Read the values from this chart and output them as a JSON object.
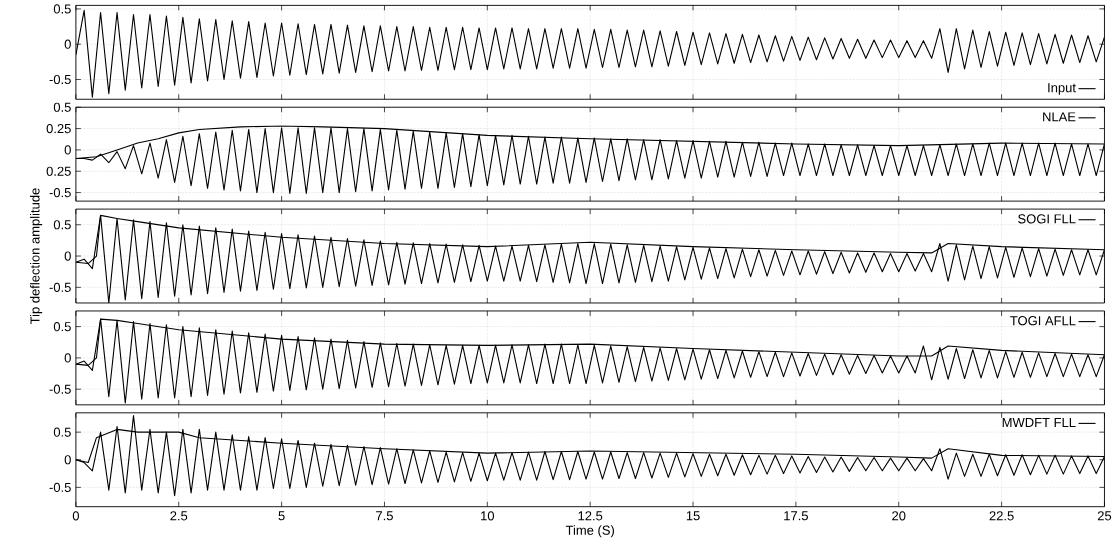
{
  "chart_data": [
    {
      "type": "line",
      "xlim": [
        0,
        25
      ],
      "ylim": [
        -0.78,
        0.55
      ],
      "xticks": [
        0,
        2.5,
        5,
        7.5,
        10,
        12.5,
        15,
        17.5,
        20,
        22.5,
        25
      ],
      "yticks": [
        -0.5,
        0,
        0.5
      ],
      "grid": true,
      "legend": "bottom right",
      "tick_labels": "y",
      "x": [
        0,
        0.2,
        0.4,
        0.6,
        0.8,
        1,
        1.2,
        1.4,
        1.6,
        1.8,
        2,
        2.2,
        2.4,
        2.6,
        2.8,
        3,
        3.2,
        3.4,
        3.6,
        3.8,
        4,
        4.2,
        4.4,
        4.6,
        4.8,
        5,
        5.2,
        5.4,
        5.6,
        5.8,
        6,
        6.2,
        6.4,
        6.6,
        6.8,
        7,
        7.2,
        7.4,
        7.6,
        7.8,
        8,
        8.2,
        8.4,
        8.6,
        8.8,
        9,
        9.2,
        9.4,
        9.6,
        9.8,
        10,
        10.2,
        10.4,
        10.6,
        10.8,
        11,
        11.2,
        11.4,
        11.6,
        11.8,
        12,
        12.2,
        12.4,
        12.6,
        12.8,
        13,
        13.2,
        13.4,
        13.6,
        13.8,
        14,
        14.2,
        14.4,
        14.6,
        14.8,
        15,
        15.2,
        15.4,
        15.6,
        15.8,
        16,
        16.2,
        16.4,
        16.6,
        16.8,
        17,
        17.2,
        17.4,
        17.6,
        17.8,
        18,
        18.2,
        18.4,
        18.6,
        18.8,
        19,
        19.2,
        19.4,
        19.6,
        19.8,
        20,
        20.2,
        20.4,
        20.6,
        20.8,
        21,
        21.2,
        21.4,
        21.6,
        21.8,
        22,
        22.2,
        22.4,
        22.6,
        22.8,
        23,
        23.2,
        23.4,
        23.6,
        23.8,
        24,
        24.2,
        24.4,
        24.6,
        24.8,
        25
      ],
      "series": [
        {
          "name": "Input",
          "color": "#000000",
          "values": [
            -0.15,
            0.48,
            -0.75,
            0.45,
            -0.7,
            0.45,
            -0.65,
            0.42,
            -0.62,
            0.42,
            -0.6,
            0.4,
            -0.58,
            0.38,
            -0.55,
            0.36,
            -0.52,
            0.35,
            -0.5,
            0.33,
            -0.48,
            0.32,
            -0.47,
            0.3,
            -0.45,
            0.3,
            -0.44,
            0.29,
            -0.43,
            0.28,
            -0.42,
            0.28,
            -0.41,
            0.27,
            -0.4,
            0.26,
            -0.39,
            0.26,
            -0.38,
            0.25,
            -0.38,
            0.25,
            -0.37,
            0.24,
            -0.37,
            0.24,
            -0.36,
            0.24,
            -0.36,
            0.23,
            -0.36,
            0.23,
            -0.35,
            0.23,
            -0.35,
            0.22,
            -0.35,
            0.22,
            -0.34,
            0.22,
            -0.34,
            0.22,
            -0.34,
            0.21,
            -0.33,
            0.21,
            -0.33,
            0.2,
            -0.32,
            0.2,
            -0.32,
            0.19,
            -0.31,
            0.18,
            -0.3,
            0.17,
            -0.29,
            0.16,
            -0.28,
            0.15,
            -0.27,
            0.14,
            -0.26,
            0.13,
            -0.25,
            0.12,
            -0.24,
            0.11,
            -0.23,
            0.1,
            -0.22,
            0.09,
            -0.21,
            0.08,
            -0.2,
            0.07,
            -0.2,
            0.06,
            -0.19,
            0.06,
            -0.19,
            0.05,
            -0.19,
            0.05,
            -0.2,
            0.22,
            -0.4,
            0.22,
            -0.35,
            0.2,
            -0.33,
            0.18,
            -0.31,
            0.17,
            -0.3,
            0.16,
            -0.29,
            0.15,
            -0.28,
            0.14,
            -0.27,
            0.13,
            -0.26,
            0.12,
            -0.25,
            0.1
          ]
        }
      ]
    },
    {
      "type": "line",
      "xlim": [
        0,
        25
      ],
      "ylim": [
        -0.6,
        0.5
      ],
      "xticks": [
        0,
        2.5,
        5,
        7.5,
        10,
        12.5,
        15,
        17.5,
        20,
        22.5,
        25
      ],
      "yticks": [
        -0.5,
        {
          "value": -0.25,
          "label": "0.25"
        },
        0,
        0.25,
        0.5
      ],
      "grid": true,
      "legend": "top right",
      "tick_labels": "y",
      "x": [
        0,
        0.2,
        0.4,
        0.6,
        0.8,
        1,
        1.2,
        1.4,
        1.6,
        1.8,
        2,
        2.2,
        2.4,
        2.6,
        2.8,
        3,
        3.2,
        3.4,
        3.6,
        3.8,
        4,
        4.2,
        4.4,
        4.6,
        4.8,
        5,
        5.2,
        5.4,
        5.6,
        5.8,
        6,
        6.2,
        6.4,
        6.6,
        6.8,
        7,
        7.2,
        7.4,
        7.6,
        7.8,
        8,
        8.2,
        8.4,
        8.6,
        8.8,
        9,
        9.2,
        9.4,
        9.6,
        9.8,
        10,
        10.2,
        10.4,
        10.6,
        10.8,
        11,
        11.2,
        11.4,
        11.6,
        11.8,
        12,
        12.2,
        12.4,
        12.6,
        12.8,
        13,
        13.2,
        13.4,
        13.6,
        13.8,
        14,
        14.2,
        14.4,
        14.6,
        14.8,
        15,
        15.2,
        15.4,
        15.6,
        15.8,
        16,
        16.2,
        16.4,
        16.6,
        16.8,
        17,
        17.2,
        17.4,
        17.6,
        17.8,
        18,
        18.2,
        18.4,
        18.6,
        18.8,
        19,
        19.2,
        19.4,
        19.6,
        19.8,
        20,
        20.2,
        20.4,
        20.6,
        20.8,
        21,
        21.2,
        21.4,
        21.6,
        21.8,
        22,
        22.2,
        22.4,
        22.6,
        22.8,
        23,
        23.2,
        23.4,
        23.6,
        23.8,
        24,
        24.2,
        24.4,
        24.6,
        24.8,
        25
      ],
      "series": [
        {
          "name": "NLAE",
          "color": "#000000",
          "values": [
            -0.1,
            -0.1,
            -0.12,
            -0.05,
            -0.15,
            -0.02,
            -0.22,
            0.05,
            -0.28,
            0.08,
            -0.33,
            0.12,
            -0.38,
            0.16,
            -0.42,
            0.19,
            -0.45,
            0.21,
            -0.47,
            0.23,
            -0.48,
            0.24,
            -0.5,
            0.25,
            -0.5,
            0.26,
            -0.51,
            0.26,
            -0.51,
            0.26,
            -0.5,
            0.26,
            -0.5,
            0.25,
            -0.49,
            0.25,
            -0.48,
            0.24,
            -0.47,
            0.23,
            -0.46,
            0.22,
            -0.45,
            0.21,
            -0.45,
            0.2,
            -0.44,
            0.19,
            -0.43,
            0.18,
            -0.42,
            0.17,
            -0.41,
            0.17,
            -0.4,
            0.16,
            -0.4,
            0.15,
            -0.39,
            0.15,
            -0.39,
            0.14,
            -0.38,
            0.14,
            -0.37,
            0.13,
            -0.36,
            0.13,
            -0.35,
            0.12,
            -0.35,
            0.12,
            -0.34,
            0.11,
            -0.33,
            0.11,
            -0.33,
            0.1,
            -0.32,
            0.1,
            -0.32,
            0.09,
            -0.31,
            0.09,
            -0.31,
            0.08,
            -0.3,
            0.08,
            -0.3,
            0.07,
            -0.3,
            0.07,
            -0.3,
            0.06,
            -0.3,
            0.06,
            -0.3,
            0.05,
            -0.3,
            0.05,
            -0.3,
            0.05,
            -0.3,
            0.05,
            -0.3,
            0.06,
            -0.3,
            0.07,
            -0.3,
            0.07,
            -0.3,
            0.08,
            -0.3,
            0.08,
            -0.3,
            0.08,
            -0.3,
            0.08,
            -0.3,
            0.08,
            -0.3,
            0.07,
            -0.3,
            0.07,
            -0.3,
            0.07
          ]
        },
        {
          "color": "#000000",
          "x": [
            0,
            0.5,
            1,
            1.5,
            2,
            2.5,
            3,
            4,
            5,
            6,
            7.5,
            10,
            12.5,
            15,
            17.5,
            20,
            22.5,
            25
          ],
          "values": [
            -0.1,
            -0.08,
            0.0,
            0.08,
            0.13,
            0.2,
            0.24,
            0.27,
            0.28,
            0.27,
            0.25,
            0.17,
            0.13,
            0.1,
            0.07,
            0.05,
            0.08,
            0.07
          ]
        }
      ]
    },
    {
      "type": "line",
      "xlim": [
        0,
        25
      ],
      "ylim": [
        -0.75,
        0.75
      ],
      "xticks": [
        0,
        2.5,
        5,
        7.5,
        10,
        12.5,
        15,
        17.5,
        20,
        22.5,
        25
      ],
      "yticks": [
        -0.5,
        0,
        0.5
      ],
      "grid": true,
      "legend": "top right",
      "tick_labels": "y",
      "ylabel": "Tip deflection amplitude",
      "x": [
        0,
        0.2,
        0.4,
        0.6,
        0.8,
        1,
        1.2,
        1.4,
        1.6,
        1.8,
        2,
        2.2,
        2.4,
        2.6,
        2.8,
        3,
        3.2,
        3.4,
        3.6,
        3.8,
        4,
        4.2,
        4.4,
        4.6,
        4.8,
        5,
        5.2,
        5.4,
        5.6,
        5.8,
        6,
        6.2,
        6.4,
        6.6,
        6.8,
        7,
        7.2,
        7.4,
        7.6,
        7.8,
        8,
        8.2,
        8.4,
        8.6,
        8.8,
        9,
        9.2,
        9.4,
        9.6,
        9.8,
        10,
        10.2,
        10.4,
        10.6,
        10.8,
        11,
        11.2,
        11.4,
        11.6,
        11.8,
        12,
        12.2,
        12.4,
        12.6,
        12.8,
        13,
        13.2,
        13.4,
        13.6,
        13.8,
        14,
        14.2,
        14.4,
        14.6,
        14.8,
        15,
        15.2,
        15.4,
        15.6,
        15.8,
        16,
        16.2,
        16.4,
        16.6,
        16.8,
        17,
        17.2,
        17.4,
        17.6,
        17.8,
        18,
        18.2,
        18.4,
        18.6,
        18.8,
        19,
        19.2,
        19.4,
        19.6,
        19.8,
        20,
        20.2,
        20.4,
        20.6,
        20.8,
        21,
        21.2,
        21.4,
        21.6,
        21.8,
        22,
        22.2,
        22.4,
        22.6,
        22.8,
        23,
        23.2,
        23.4,
        23.6,
        23.8,
        24,
        24.2,
        24.4,
        24.6,
        24.8,
        25
      ],
      "series": [
        {
          "name": "SOGI FLL",
          "color": "#000000",
          "values": [
            -0.1,
            -0.05,
            -0.2,
            0.65,
            -0.75,
            0.6,
            -0.7,
            0.58,
            -0.68,
            0.55,
            -0.66,
            0.53,
            -0.64,
            0.5,
            -0.62,
            0.48,
            -0.6,
            0.45,
            -0.58,
            0.43,
            -0.56,
            0.4,
            -0.55,
            0.38,
            -0.53,
            0.36,
            -0.52,
            0.34,
            -0.51,
            0.32,
            -0.5,
            0.3,
            -0.49,
            0.28,
            -0.48,
            0.26,
            -0.47,
            0.24,
            -0.46,
            0.22,
            -0.45,
            0.21,
            -0.44,
            0.2,
            -0.43,
            0.19,
            -0.42,
            0.18,
            -0.41,
            0.17,
            -0.4,
            0.16,
            -0.4,
            0.16,
            -0.4,
            0.17,
            -0.41,
            0.18,
            -0.42,
            0.19,
            -0.43,
            0.2,
            -0.44,
            0.2,
            -0.44,
            0.19,
            -0.43,
            0.18,
            -0.42,
            0.17,
            -0.41,
            0.16,
            -0.4,
            0.15,
            -0.38,
            0.14,
            -0.37,
            0.13,
            -0.36,
            0.12,
            -0.35,
            0.11,
            -0.33,
            0.1,
            -0.32,
            0.09,
            -0.31,
            0.08,
            -0.3,
            0.08,
            -0.29,
            0.07,
            -0.28,
            0.06,
            -0.27,
            0.05,
            -0.26,
            0.05,
            -0.25,
            0.04,
            -0.25,
            0.04,
            -0.24,
            0.04,
            -0.25,
            0.2,
            -0.4,
            0.18,
            -0.38,
            0.16,
            -0.36,
            0.15,
            -0.35,
            0.14,
            -0.34,
            0.13,
            -0.33,
            0.12,
            -0.32,
            0.11,
            -0.31,
            0.1,
            -0.3,
            0.1,
            -0.3,
            0.1
          ]
        },
        {
          "color": "#000000",
          "x": [
            0,
            0.3,
            0.5,
            0.6,
            1,
            1.5,
            2.5,
            5,
            7.5,
            10,
            12.5,
            15,
            17.5,
            20,
            20.8,
            21.2,
            22.5,
            25
          ],
          "values": [
            -0.1,
            -0.12,
            0.0,
            0.65,
            0.6,
            0.55,
            0.45,
            0.3,
            0.2,
            0.15,
            0.22,
            0.15,
            0.1,
            0.06,
            0.05,
            0.2,
            0.15,
            0.1
          ]
        }
      ]
    },
    {
      "type": "line",
      "xlim": [
        0,
        25
      ],
      "ylim": [
        -0.75,
        0.75
      ],
      "xticks": [
        0,
        2.5,
        5,
        7.5,
        10,
        12.5,
        15,
        17.5,
        20,
        22.5,
        25
      ],
      "yticks": [
        -0.5,
        0,
        0.5
      ],
      "grid": true,
      "legend": "top right",
      "tick_labels": "y",
      "x": [
        0,
        0.2,
        0.4,
        0.6,
        0.8,
        1,
        1.2,
        1.4,
        1.6,
        1.8,
        2,
        2.2,
        2.4,
        2.6,
        2.8,
        3,
        3.2,
        3.4,
        3.6,
        3.8,
        4,
        4.2,
        4.4,
        4.6,
        4.8,
        5,
        5.2,
        5.4,
        5.6,
        5.8,
        6,
        6.2,
        6.4,
        6.6,
        6.8,
        7,
        7.2,
        7.4,
        7.6,
        7.8,
        8,
        8.2,
        8.4,
        8.6,
        8.8,
        9,
        9.2,
        9.4,
        9.6,
        9.8,
        10,
        10.2,
        10.4,
        10.6,
        10.8,
        11,
        11.2,
        11.4,
        11.6,
        11.8,
        12,
        12.2,
        12.4,
        12.6,
        12.8,
        13,
        13.2,
        13.4,
        13.6,
        13.8,
        14,
        14.2,
        14.4,
        14.6,
        14.8,
        15,
        15.2,
        15.4,
        15.6,
        15.8,
        16,
        16.2,
        16.4,
        16.6,
        16.8,
        17,
        17.2,
        17.4,
        17.6,
        17.8,
        18,
        18.2,
        18.4,
        18.6,
        18.8,
        19,
        19.2,
        19.4,
        19.6,
        19.8,
        20,
        20.2,
        20.4,
        20.6,
        20.8,
        21,
        21.2,
        21.4,
        21.6,
        21.8,
        22,
        22.2,
        22.4,
        22.6,
        22.8,
        23,
        23.2,
        23.4,
        23.6,
        23.8,
        24,
        24.2,
        24.4,
        24.6,
        24.8,
        25
      ],
      "series": [
        {
          "name": "TOGI AFLL",
          "color": "#000000",
          "values": [
            -0.1,
            -0.05,
            -0.2,
            0.62,
            -0.62,
            0.6,
            -0.72,
            0.58,
            -0.66,
            0.55,
            -0.64,
            0.53,
            -0.64,
            0.5,
            -0.62,
            0.48,
            -0.6,
            0.45,
            -0.58,
            0.43,
            -0.56,
            0.4,
            -0.55,
            0.38,
            -0.53,
            0.36,
            -0.52,
            0.34,
            -0.51,
            0.32,
            -0.5,
            0.3,
            -0.49,
            0.28,
            -0.48,
            0.26,
            -0.47,
            0.24,
            -0.46,
            0.23,
            -0.45,
            0.22,
            -0.44,
            0.21,
            -0.43,
            0.2,
            -0.42,
            0.2,
            -0.41,
            0.2,
            -0.4,
            0.2,
            -0.4,
            0.21,
            -0.4,
            0.21,
            -0.41,
            0.22,
            -0.41,
            0.22,
            -0.41,
            0.21,
            -0.41,
            0.2,
            -0.4,
            0.19,
            -0.39,
            0.18,
            -0.38,
            0.17,
            -0.37,
            0.16,
            -0.36,
            0.15,
            -0.35,
            0.14,
            -0.34,
            0.13,
            -0.33,
            0.12,
            -0.32,
            0.11,
            -0.31,
            0.1,
            -0.3,
            0.09,
            -0.3,
            0.08,
            -0.29,
            0.07,
            -0.28,
            0.06,
            -0.27,
            0.05,
            -0.26,
            0.04,
            -0.25,
            0.04,
            -0.24,
            0.03,
            -0.24,
            0.03,
            -0.24,
            0.19,
            -0.35,
            0.17,
            -0.34,
            0.15,
            -0.33,
            0.13,
            -0.32,
            0.12,
            -0.32,
            0.1,
            -0.31,
            0.09,
            -0.31,
            0.08,
            -0.3,
            0.07,
            -0.3,
            0.06,
            -0.3,
            0.05,
            -0.3,
            0.05
          ]
        },
        {
          "color": "#000000",
          "x": [
            0,
            0.3,
            0.5,
            0.6,
            1,
            1.5,
            2.5,
            5,
            7.5,
            10,
            12.5,
            15,
            17.5,
            20,
            20.8,
            21.2,
            22.5,
            25
          ],
          "values": [
            -0.1,
            -0.12,
            0.0,
            0.62,
            0.6,
            0.55,
            0.45,
            0.3,
            0.22,
            0.2,
            0.22,
            0.15,
            0.09,
            0.03,
            0.03,
            0.19,
            0.12,
            0.05
          ]
        }
      ]
    },
    {
      "type": "line",
      "xlim": [
        0,
        25
      ],
      "ylim": [
        -0.85,
        0.85
      ],
      "xticks": [
        0,
        2.5,
        5,
        7.5,
        10,
        12.5,
        15,
        17.5,
        20,
        22.5,
        25
      ],
      "yticks": [
        -0.5,
        0,
        0.5
      ],
      "grid": true,
      "legend": "top right",
      "xlabel": "Time (S)",
      "x": [
        0,
        0.2,
        0.4,
        0.6,
        0.8,
        1,
        1.2,
        1.4,
        1.6,
        1.8,
        2,
        2.2,
        2.4,
        2.6,
        2.8,
        3,
        3.2,
        3.4,
        3.6,
        3.8,
        4,
        4.2,
        4.4,
        4.6,
        4.8,
        5,
        5.2,
        5.4,
        5.6,
        5.8,
        6,
        6.2,
        6.4,
        6.6,
        6.8,
        7,
        7.2,
        7.4,
        7.6,
        7.8,
        8,
        8.2,
        8.4,
        8.6,
        8.8,
        9,
        9.2,
        9.4,
        9.6,
        9.8,
        10,
        10.2,
        10.4,
        10.6,
        10.8,
        11,
        11.2,
        11.4,
        11.6,
        11.8,
        12,
        12.2,
        12.4,
        12.6,
        12.8,
        13,
        13.2,
        13.4,
        13.6,
        13.8,
        14,
        14.2,
        14.4,
        14.6,
        14.8,
        15,
        15.2,
        15.4,
        15.6,
        15.8,
        16,
        16.2,
        16.4,
        16.6,
        16.8,
        17,
        17.2,
        17.4,
        17.6,
        17.8,
        18,
        18.2,
        18.4,
        18.6,
        18.8,
        19,
        19.2,
        19.4,
        19.6,
        19.8,
        20,
        20.2,
        20.4,
        20.6,
        20.8,
        21,
        21.2,
        21.4,
        21.6,
        21.8,
        22,
        22.2,
        22.4,
        22.6,
        22.8,
        23,
        23.2,
        23.4,
        23.6,
        23.8,
        24,
        24.2,
        24.4,
        24.6,
        24.8,
        25
      ],
      "series": [
        {
          "name": "MWDFT FLL",
          "color": "#000000",
          "values": [
            0,
            -0.05,
            -0.2,
            0.5,
            -0.55,
            0.6,
            -0.6,
            0.8,
            -0.55,
            0.55,
            -0.6,
            0.5,
            -0.65,
            0.55,
            -0.6,
            0.55,
            -0.55,
            0.5,
            -0.55,
            0.45,
            -0.55,
            0.42,
            -0.55,
            0.4,
            -0.52,
            0.38,
            -0.52,
            0.35,
            -0.5,
            0.3,
            -0.48,
            0.28,
            -0.47,
            0.26,
            -0.46,
            0.24,
            -0.45,
            0.22,
            -0.44,
            0.2,
            -0.43,
            0.18,
            -0.42,
            0.16,
            -0.41,
            0.14,
            -0.4,
            0.13,
            -0.39,
            0.12,
            -0.38,
            0.12,
            -0.37,
            0.13,
            -0.37,
            0.14,
            -0.37,
            0.15,
            -0.36,
            0.15,
            -0.36,
            0.15,
            -0.35,
            0.14,
            -0.35,
            0.14,
            -0.34,
            0.13,
            -0.34,
            0.13,
            -0.33,
            0.12,
            -0.32,
            0.12,
            -0.31,
            0.11,
            -0.3,
            0.1,
            -0.29,
            0.1,
            -0.28,
            0.09,
            -0.27,
            0.08,
            -0.26,
            0.08,
            -0.25,
            0.07,
            -0.24,
            0.06,
            -0.23,
            0.05,
            -0.22,
            0.05,
            -0.21,
            0.04,
            -0.2,
            0.04,
            -0.2,
            0.03,
            -0.2,
            0.03,
            -0.2,
            0.02,
            -0.2,
            0.2,
            -0.35,
            0.12,
            -0.3,
            0.1,
            -0.3,
            0.1,
            -0.29,
            0.09,
            -0.28,
            0.09,
            -0.27,
            0.08,
            -0.26,
            0.08,
            -0.26,
            0.07,
            -0.25,
            0.07,
            -0.25,
            0.06
          ]
        },
        {
          "color": "#000000",
          "x": [
            0,
            0.3,
            0.5,
            1,
            1.5,
            2.5,
            3,
            5,
            7.5,
            10,
            12.5,
            15,
            17.5,
            20,
            20.8,
            21.2,
            22.5,
            25
          ],
          "values": [
            0,
            -0.05,
            0.4,
            0.55,
            0.5,
            0.5,
            0.4,
            0.3,
            0.2,
            0.12,
            0.16,
            0.13,
            0.1,
            0.05,
            0.03,
            0.2,
            0.08,
            0.06
          ]
        }
      ]
    }
  ]
}
